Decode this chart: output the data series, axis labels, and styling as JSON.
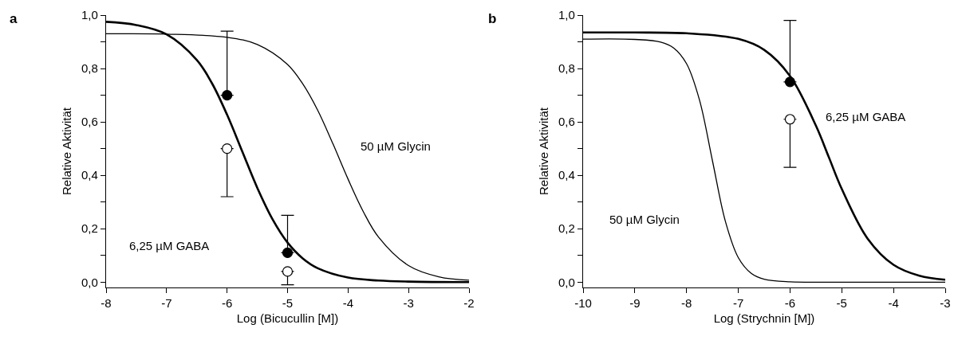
{
  "chart_data": [
    {
      "type": "line",
      "title": "a",
      "xlabel": "Log (Bicucullin [M])",
      "ylabel": "Relative Aktivität",
      "xlim": [
        -8,
        -2
      ],
      "xticks": [
        -8,
        -7,
        -6,
        -5,
        -4,
        -3,
        -2
      ],
      "ylim": [
        -0.02,
        1.0
      ],
      "yticks": [
        {
          "value": 0.0,
          "label": "0,0"
        },
        {
          "value": 0.1,
          "label": null
        },
        {
          "value": 0.2,
          "label": "0,2"
        },
        {
          "value": 0.3,
          "label": null
        },
        {
          "value": 0.4,
          "label": "0,4"
        },
        {
          "value": 0.5,
          "label": null
        },
        {
          "value": 0.6,
          "label": "0,6"
        },
        {
          "value": 0.7,
          "label": null
        },
        {
          "value": 0.8,
          "label": "0,8"
        },
        {
          "value": 0.9,
          "label": null
        },
        {
          "value": 1.0,
          "label": "1,0"
        }
      ],
      "marker": "none",
      "line_style": "solid",
      "series": [
        {
          "color": "#000000",
          "x": [
            -8,
            -7.5,
            -7,
            -6.5,
            -6.25,
            -6,
            -5.75,
            -5.5,
            -5.25,
            -5,
            -4.75,
            -4.5,
            -4,
            -3.5,
            -3,
            -2
          ],
          "values": [
            0.975,
            0.963,
            0.928,
            0.832,
            0.745,
            0.627,
            0.49,
            0.353,
            0.236,
            0.148,
            0.089,
            0.052,
            0.017,
            0.006,
            0.002,
            0.0
          ]
        },
        {
          "color": "#000000",
          "x": [
            -8,
            -7,
            -6,
            -5.5,
            -5,
            -4.75,
            -4.5,
            -4.25,
            -4,
            -3.75,
            -3.5,
            -3,
            -2.5,
            -2
          ],
          "values": [
            0.93,
            0.929,
            0.917,
            0.89,
            0.815,
            0.743,
            0.643,
            0.518,
            0.386,
            0.265,
            0.17,
            0.062,
            0.02,
            0.007
          ]
        },
        {
          "type": "scatter",
          "marker": "circle",
          "color": "#000000",
          "x": [
            -6,
            -5
          ],
          "values": [
            0.7,
            0.11
          ],
          "errors": [
            [
              0.7,
              0.94
            ],
            [
              0.11,
              0.25
            ]
          ]
        },
        {
          "type": "scatter",
          "marker": "circle",
          "color": "#ffffff",
          "x": [
            -6,
            -5
          ],
          "values": [
            0.5,
            0.04
          ],
          "errors": [
            [
              0.32,
              0.5
            ],
            [
              -0.01,
              0.04
            ]
          ]
        }
      ],
      "annotations": [
        "6,25 µM GABA",
        "50 µM Glycin"
      ]
    },
    {
      "type": "line",
      "title": "b",
      "xlabel": "Log (Strychnin [M])",
      "ylabel": "Relative Aktivität",
      "xlim": [
        -10,
        -3
      ],
      "xticks": [
        -10,
        -9,
        -8,
        -7,
        -6,
        -5,
        -4,
        -3
      ],
      "ylim": [
        -0.02,
        1.0
      ],
      "yticks": [
        {
          "value": 0.0,
          "label": "0,0"
        },
        {
          "value": 0.1,
          "label": null
        },
        {
          "value": 0.2,
          "label": "0,2"
        },
        {
          "value": 0.3,
          "label": null
        },
        {
          "value": 0.4,
          "label": "0,4"
        },
        {
          "value": 0.5,
          "label": null
        },
        {
          "value": 0.6,
          "label": "0,6"
        },
        {
          "value": 0.7,
          "label": null
        },
        {
          "value": 0.8,
          "label": "0,8"
        },
        {
          "value": 0.9,
          "label": null
        },
        {
          "value": 1.0,
          "label": "1,0"
        }
      ],
      "marker": "none",
      "line_style": "solid",
      "series": [
        {
          "color": "#000000",
          "x": [
            -10,
            -9,
            -8,
            -7,
            -6.5,
            -6,
            -5.5,
            -5.25,
            -5,
            -4.5,
            -4,
            -3.5,
            -3
          ],
          "values": [
            0.935,
            0.935,
            0.932,
            0.911,
            0.87,
            0.772,
            0.586,
            0.468,
            0.349,
            0.163,
            0.065,
            0.024,
            0.009
          ]
        },
        {
          "color": "#000000",
          "x": [
            -10,
            -9,
            -8.5,
            -8.25,
            -8,
            -7.75,
            -7.5,
            -7.25,
            -7,
            -6.75,
            -6.5,
            -6,
            -5,
            -3
          ],
          "values": [
            0.91,
            0.909,
            0.899,
            0.877,
            0.818,
            0.682,
            0.455,
            0.228,
            0.092,
            0.033,
            0.011,
            0.001,
            0.0,
            0.0
          ]
        },
        {
          "type": "scatter",
          "marker": "circle",
          "color": "#000000",
          "x": [
            -6
          ],
          "values": [
            0.75
          ],
          "errors": [
            [
              0.75,
              0.98
            ]
          ]
        },
        {
          "type": "scatter",
          "marker": "circle",
          "color": "#ffffff",
          "x": [
            -6
          ],
          "values": [
            0.61
          ],
          "errors": [
            [
              0.43,
              0.61
            ]
          ]
        }
      ],
      "annotations": [
        "6,25 µM GABA",
        "50 µM Glycin"
      ]
    }
  ]
}
